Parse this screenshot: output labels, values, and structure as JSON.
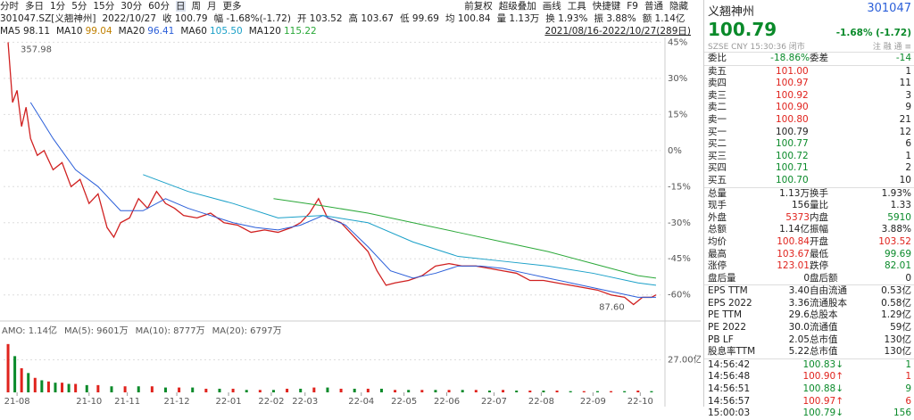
{
  "toolbar": {
    "tabs": [
      "分时",
      "多日",
      "1分",
      "5分",
      "15分",
      "30分",
      "60分",
      "日",
      "周",
      "月",
      "更多"
    ],
    "tools": [
      "前复权",
      "超级叠加",
      "画线",
      "工具",
      "快捷键",
      "F9",
      "普通",
      "隐藏"
    ]
  },
  "info_line": [
    "301047.SZ[义翘神州]",
    "2022/10/27",
    "收 100.79",
    "幅 -1.68%(-1.72)",
    "开 103.52",
    "高 103.67",
    "低 99.69",
    "均 100.84",
    "量 1.13万",
    "换 1.93%",
    "振 3.88%",
    "额 1.14亿"
  ],
  "range_label": "2021/08/16-2022/10/27(289日)",
  "quote": {
    "name": "义翘神州",
    "code": "301047",
    "price": "100.79",
    "change": "-1.68% (-1.72)",
    "status": "SZSE CNY 15:30:36 闭市",
    "icons": "注 融 通 ≡"
  },
  "ratio": [
    "委比",
    "-18.86%",
    "委差",
    "-14"
  ],
  "book": [
    [
      "卖五",
      "101.00",
      "1"
    ],
    [
      "卖四",
      "100.97",
      "11"
    ],
    [
      "卖三",
      "100.92",
      "3"
    ],
    [
      "卖二",
      "100.90",
      "9"
    ],
    [
      "卖一",
      "100.80",
      "21"
    ],
    [
      "买一",
      "100.79",
      "12"
    ],
    [
      "买二",
      "100.77",
      "6"
    ],
    [
      "买三",
      "100.72",
      "1"
    ],
    [
      "买四",
      "100.71",
      "2"
    ],
    [
      "买五",
      "100.70",
      "10"
    ]
  ],
  "stats": [
    [
      "总量",
      "1.13万",
      "换手",
      "1.93%"
    ],
    [
      "现手",
      "156",
      "量比",
      "1.33"
    ],
    [
      "外盘",
      "5373",
      "内盘",
      "5910"
    ],
    [
      "总额",
      "1.14亿",
      "振幅",
      "3.88%"
    ],
    [
      "均价",
      "100.84",
      "开盘",
      "103.52"
    ],
    [
      "最高",
      "103.67",
      "最低",
      "99.69"
    ],
    [
      "涨停",
      "123.01",
      "跌停",
      "82.01"
    ],
    [
      "盘后量",
      "0",
      "盘后额",
      "0"
    ],
    [
      "EPS TTM",
      "3.40",
      "自由流通",
      "0.53亿"
    ],
    [
      "EPS 2022",
      "3.36",
      "流通股本",
      "0.58亿"
    ],
    [
      "PE TTM",
      "29.6",
      "总股本",
      "1.29亿"
    ],
    [
      "PE 2022",
      "30.0",
      "流通值",
      "59亿"
    ],
    [
      "PB LF",
      "2.05",
      "总市值",
      "130亿"
    ],
    [
      "股息率TTM",
      "5.22",
      "总市值",
      "130亿"
    ]
  ],
  "trades": [
    [
      "14:56:42",
      "100.83",
      "↓",
      "1"
    ],
    [
      "14:56:48",
      "100.90",
      "↑",
      "1"
    ],
    [
      "14:56:51",
      "100.88",
      "↓",
      "9"
    ],
    [
      "14:56:57",
      "100.97",
      "↑",
      "6"
    ],
    [
      "15:00:03",
      "100.79",
      "↓",
      "156"
    ]
  ],
  "chart_data": [
    {
      "type": "line",
      "ma_legend": [
        {
          "name": "MA5",
          "value": "98.11",
          "color": "#222"
        },
        {
          "name": "MA10",
          "value": "99.04",
          "color": "#c08000"
        },
        {
          "name": "MA20",
          "value": "96.41",
          "color": "#2b5fd9"
        },
        {
          "name": "MA60",
          "value": "105.50",
          "color": "#1aa0c8"
        },
        {
          "name": "MA120",
          "value": "115.22",
          "color": "#2aa838"
        }
      ],
      "annotations": [
        "357.98",
        "87.60"
      ],
      "xlim": [
        -2,
        290
      ],
      "ylim": [
        -69,
        47
      ],
      "yticks": [
        {
          "value": 45,
          "label": "45%"
        },
        {
          "value": 30,
          "label": "30%"
        },
        {
          "value": 15,
          "label": "15%"
        },
        {
          "value": 0,
          "label": "0%"
        },
        {
          "value": -15,
          "label": "-15%"
        },
        {
          "value": -30,
          "label": "-30%"
        },
        {
          "value": -45,
          "label": "-45%"
        },
        {
          "value": -60,
          "label": "-60%"
        }
      ],
      "grid": true,
      "series": [
        {
          "color": "#d02020",
          "x": [
            0,
            2,
            4,
            6,
            8,
            10,
            13,
            16,
            20,
            24,
            28,
            32,
            36,
            40,
            44,
            47,
            50,
            54,
            58,
            62,
            66,
            70,
            74,
            78,
            84,
            90,
            96,
            102,
            108,
            114,
            120,
            126,
            130,
            134,
            138,
            142,
            148,
            154,
            160,
            164,
            168,
            172,
            178,
            184,
            190,
            196,
            202,
            208,
            214,
            220,
            226,
            232,
            238,
            244,
            250,
            256,
            262,
            268,
            274,
            278,
            282,
            286,
            288
          ],
          "values": [
            45,
            20,
            25,
            10,
            18,
            5,
            -2,
            0,
            -8,
            -5,
            -15,
            -12,
            -22,
            -18,
            -32,
            -36,
            -30,
            -28,
            -20,
            -24,
            -17,
            -22,
            -24,
            -27,
            -28,
            -26,
            -30,
            -31,
            -34,
            -33,
            -34,
            -32,
            -30,
            -26,
            -20,
            -28,
            -30,
            -36,
            -42,
            -50,
            -56,
            -55,
            -54,
            -52,
            -48,
            -47,
            -48,
            -48,
            -49,
            -50,
            -51,
            -54,
            -54,
            -55,
            -56,
            -57,
            -58,
            -60,
            -61,
            -64,
            -61,
            -61,
            -60
          ]
        },
        {
          "color": "#2b5fd9",
          "x": [
            10,
            20,
            30,
            40,
            50,
            60,
            70,
            80,
            90,
            100,
            110,
            120,
            130,
            140,
            150,
            160,
            170,
            180,
            190,
            200,
            210,
            220,
            230,
            240,
            250,
            260,
            270,
            280,
            288
          ],
          "values": [
            20,
            5,
            -8,
            -15,
            -25,
            -25,
            -20,
            -24,
            -27,
            -30,
            -32,
            -33,
            -31,
            -27,
            -31,
            -40,
            -50,
            -53,
            -51,
            -48,
            -48,
            -49,
            -51,
            -53,
            -55,
            -57,
            -59,
            -61,
            -61
          ]
        },
        {
          "color": "#1aa0c8",
          "x": [
            60,
            80,
            100,
            120,
            140,
            160,
            180,
            200,
            220,
            240,
            260,
            280,
            288
          ],
          "values": [
            -10,
            -17,
            -22,
            -28,
            -27,
            -30,
            -38,
            -44,
            -46,
            -48,
            -51,
            -55,
            -56
          ]
        },
        {
          "color": "#2aa838",
          "x": [
            118,
            140,
            160,
            180,
            200,
            220,
            240,
            260,
            280,
            288
          ],
          "values": [
            -20,
            -23,
            -26,
            -30,
            -34,
            -38,
            -42,
            -47,
            -52,
            -53
          ]
        }
      ]
    },
    {
      "type": "bar",
      "labels": [
        "AMO: 1.14亿",
        "MA(5): 9601万",
        "MA(10): 8777万",
        "MA(20): 6797万"
      ],
      "xlim": [
        -2,
        290
      ],
      "ylim": [
        0,
        48
      ],
      "yticks": [
        {
          "value": 27,
          "label": "27.00亿"
        }
      ],
      "xticks": [
        {
          "value": 4,
          "label": "21-08"
        },
        {
          "value": 36,
          "label": "21-10"
        },
        {
          "value": 53,
          "label": "21-11"
        },
        {
          "value": 75,
          "label": "21-12"
        },
        {
          "value": 98,
          "label": "22-01"
        },
        {
          "value": 117,
          "label": "22-02"
        },
        {
          "value": 132,
          "label": "22-03"
        },
        {
          "value": 157,
          "label": "22-04"
        },
        {
          "value": 176,
          "label": "22-05"
        },
        {
          "value": 195,
          "label": "22-06"
        },
        {
          "value": 216,
          "label": "22-07"
        },
        {
          "value": 237,
          "label": "22-08"
        },
        {
          "value": 260,
          "label": "22-09"
        },
        {
          "value": 281,
          "label": "22-10"
        }
      ],
      "series": [
        {
          "color": "#e0231d",
          "x": [
            0,
            6,
            12,
            18,
            24,
            30,
            40,
            52,
            64,
            76,
            88,
            100,
            112,
            124,
            136,
            148,
            160,
            172,
            184,
            196,
            208,
            220,
            232,
            244,
            256,
            268,
            280
          ],
          "values": [
            40,
            20,
            12,
            9,
            8,
            7,
            6,
            5,
            5,
            4,
            3,
            3,
            2,
            3,
            4,
            3,
            3,
            2,
            2,
            2,
            2,
            2,
            1.5,
            1.5,
            1,
            1,
            1.5
          ]
        },
        {
          "color": "#0a8a2a",
          "x": [
            3,
            9,
            15,
            21,
            27,
            35,
            46,
            58,
            70,
            82,
            94,
            106,
            118,
            130,
            142,
            154,
            166,
            178,
            190,
            202,
            214,
            226,
            238,
            250,
            262,
            274,
            286
          ],
          "values": [
            30,
            16,
            10,
            8,
            7,
            6,
            5,
            5,
            4,
            4,
            3,
            2,
            2,
            3,
            4,
            3,
            3,
            2,
            2,
            2,
            1.5,
            1.5,
            1.5,
            1,
            1,
            1,
            1
          ]
        }
      ]
    }
  ]
}
